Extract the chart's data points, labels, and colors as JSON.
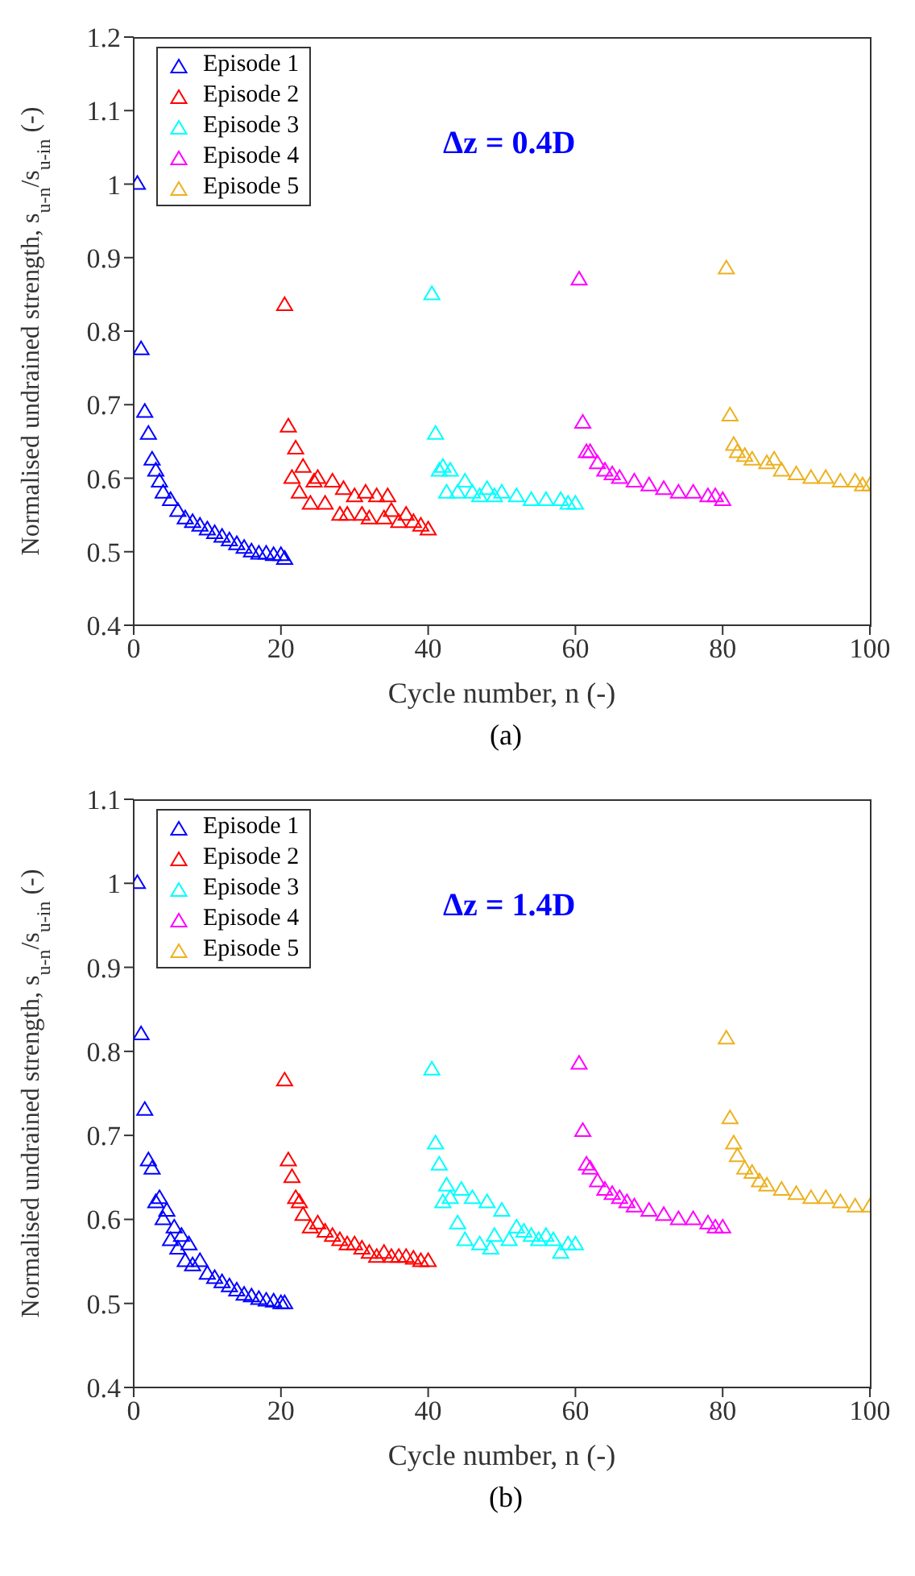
{
  "chart_data": [
    {
      "type": "scatter",
      "xlabel": "Cycle number, n (-)",
      "ylabel": "Normalised undrained strength, s$_{u-n}$/s$_{u-in}$ (-)",
      "annotations": [
        "Δz = 0.4D",
        "(a)"
      ],
      "xlim": [
        0,
        100
      ],
      "xticks": [
        0,
        20,
        40,
        60,
        80,
        100
      ],
      "ylim": [
        0.4,
        1.2
      ],
      "yticks": [
        0.4,
        0.5,
        0.6,
        0.7,
        0.8,
        0.9,
        1,
        1.1,
        1.2
      ],
      "legend": "top left",
      "marker": "triangle",
      "grid": false,
      "series": [
        {
          "name": "Episode 1",
          "color": "#0000ff",
          "x": [
            0.5,
            1,
            1.5,
            2,
            2.5,
            3,
            3.5,
            4,
            5,
            6,
            7,
            8,
            9,
            10,
            11,
            12,
            13,
            14,
            15,
            16,
            17,
            18,
            19,
            20,
            20.5
          ],
          "values": [
            1.0,
            0.775,
            0.69,
            0.66,
            0.625,
            0.61,
            0.595,
            0.58,
            0.57,
            0.555,
            0.545,
            0.54,
            0.535,
            0.53,
            0.525,
            0.52,
            0.515,
            0.51,
            0.505,
            0.5,
            0.497,
            0.497,
            0.495,
            0.495,
            0.49
          ]
        },
        {
          "name": "Episode 2",
          "color": "#ff0000",
          "x": [
            20.5,
            21,
            21.5,
            22,
            22.5,
            23,
            24,
            24.5,
            25,
            26,
            27,
            28,
            28.5,
            29,
            30,
            31,
            31.5,
            32,
            33,
            34,
            34.5,
            35,
            36,
            37,
            38,
            39,
            40
          ],
          "values": [
            0.835,
            0.67,
            0.6,
            0.64,
            0.58,
            0.615,
            0.565,
            0.595,
            0.6,
            0.565,
            0.595,
            0.55,
            0.585,
            0.55,
            0.575,
            0.55,
            0.58,
            0.545,
            0.575,
            0.545,
            0.575,
            0.555,
            0.54,
            0.55,
            0.54,
            0.535,
            0.53
          ]
        },
        {
          "name": "Episode 3",
          "color": "#00ffff",
          "x": [
            40.5,
            41,
            41.5,
            42,
            42.5,
            43,
            44,
            45,
            46,
            47,
            48,
            49,
            50,
            52,
            54,
            56,
            58,
            59,
            60
          ],
          "values": [
            0.85,
            0.66,
            0.61,
            0.615,
            0.58,
            0.61,
            0.58,
            0.595,
            0.58,
            0.575,
            0.585,
            0.575,
            0.58,
            0.575,
            0.57,
            0.57,
            0.57,
            0.565,
            0.565
          ]
        },
        {
          "name": "Episode 4",
          "color": "#ff00ff",
          "x": [
            60.5,
            61,
            61.5,
            62,
            63,
            64,
            65,
            66,
            68,
            70,
            72,
            74,
            76,
            78,
            79,
            80
          ],
          "values": [
            0.87,
            0.675,
            0.635,
            0.635,
            0.62,
            0.61,
            0.605,
            0.6,
            0.595,
            0.59,
            0.585,
            0.58,
            0.58,
            0.575,
            0.575,
            0.57
          ]
        },
        {
          "name": "Episode 5",
          "color": "#edb120",
          "x": [
            80.5,
            81,
            81.5,
            82,
            83,
            84,
            86,
            87,
            88,
            90,
            92,
            94,
            96,
            98,
            99,
            100
          ],
          "values": [
            0.885,
            0.685,
            0.645,
            0.635,
            0.63,
            0.625,
            0.62,
            0.625,
            0.61,
            0.605,
            0.6,
            0.6,
            0.595,
            0.595,
            0.59,
            0.59
          ]
        }
      ]
    },
    {
      "type": "scatter",
      "xlabel": "Cycle number, n (-)",
      "ylabel": "Normalised undrained strength, s$_{u-n}$/s$_{u-in}$ (-)",
      "annotations": [
        "Δz = 1.4D",
        "(b)"
      ],
      "xlim": [
        0,
        100
      ],
      "xticks": [
        0,
        20,
        40,
        60,
        80,
        100
      ],
      "ylim": [
        0.4,
        1.1
      ],
      "yticks": [
        0.4,
        0.5,
        0.6,
        0.7,
        0.8,
        0.9,
        1,
        1.1
      ],
      "legend": "top left",
      "marker": "triangle",
      "grid": false,
      "series": [
        {
          "name": "Episode 1",
          "color": "#0000ff",
          "x": [
            0.5,
            1,
            1.5,
            2,
            2.5,
            3,
            3.5,
            4,
            4.5,
            5,
            5.5,
            6,
            6.5,
            7,
            7.5,
            8,
            9,
            10,
            11,
            12,
            13,
            14,
            15,
            16,
            17,
            18,
            19,
            20,
            20.5
          ],
          "values": [
            1.0,
            0.82,
            0.73,
            0.67,
            0.66,
            0.62,
            0.625,
            0.6,
            0.61,
            0.575,
            0.59,
            0.565,
            0.58,
            0.55,
            0.57,
            0.545,
            0.55,
            0.535,
            0.53,
            0.525,
            0.52,
            0.515,
            0.51,
            0.508,
            0.505,
            0.503,
            0.502,
            0.5,
            0.5
          ]
        },
        {
          "name": "Episode 2",
          "color": "#ff0000",
          "x": [
            20.5,
            21,
            21.5,
            22,
            22.5,
            23,
            24,
            25,
            26,
            27,
            28,
            29,
            30,
            31,
            32,
            33,
            34,
            35,
            36,
            37,
            38,
            39,
            40
          ],
          "values": [
            0.765,
            0.67,
            0.65,
            0.625,
            0.62,
            0.605,
            0.59,
            0.595,
            0.585,
            0.58,
            0.575,
            0.57,
            0.57,
            0.565,
            0.56,
            0.555,
            0.56,
            0.555,
            0.555,
            0.555,
            0.553,
            0.55,
            0.55
          ]
        },
        {
          "name": "Episode 3",
          "color": "#00ffff",
          "x": [
            40.5,
            41,
            41.5,
            42,
            42.5,
            43,
            44,
            44.5,
            45,
            46,
            47,
            48,
            48.5,
            49,
            50,
            51,
            52,
            53,
            54,
            55,
            56,
            57,
            58,
            59,
            60
          ],
          "values": [
            0.778,
            0.69,
            0.665,
            0.62,
            0.64,
            0.625,
            0.595,
            0.635,
            0.575,
            0.625,
            0.57,
            0.62,
            0.565,
            0.58,
            0.61,
            0.575,
            0.59,
            0.585,
            0.58,
            0.575,
            0.58,
            0.575,
            0.56,
            0.57,
            0.57
          ]
        },
        {
          "name": "Episode 4",
          "color": "#ff00ff",
          "x": [
            60.5,
            61,
            61.5,
            62,
            63,
            64,
            65,
            66,
            67,
            68,
            70,
            72,
            74,
            76,
            78,
            79,
            80
          ],
          "values": [
            0.785,
            0.705,
            0.665,
            0.66,
            0.645,
            0.635,
            0.63,
            0.625,
            0.62,
            0.615,
            0.61,
            0.605,
            0.6,
            0.6,
            0.595,
            0.59,
            0.59
          ]
        },
        {
          "name": "Episode 5",
          "color": "#edb120",
          "x": [
            80.5,
            81,
            81.5,
            82,
            83,
            84,
            85,
            86,
            88,
            90,
            92,
            94,
            96,
            98,
            100
          ],
          "values": [
            0.815,
            0.72,
            0.69,
            0.675,
            0.66,
            0.655,
            0.645,
            0.64,
            0.635,
            0.63,
            0.625,
            0.625,
            0.62,
            0.615,
            0.615
          ]
        }
      ]
    }
  ]
}
